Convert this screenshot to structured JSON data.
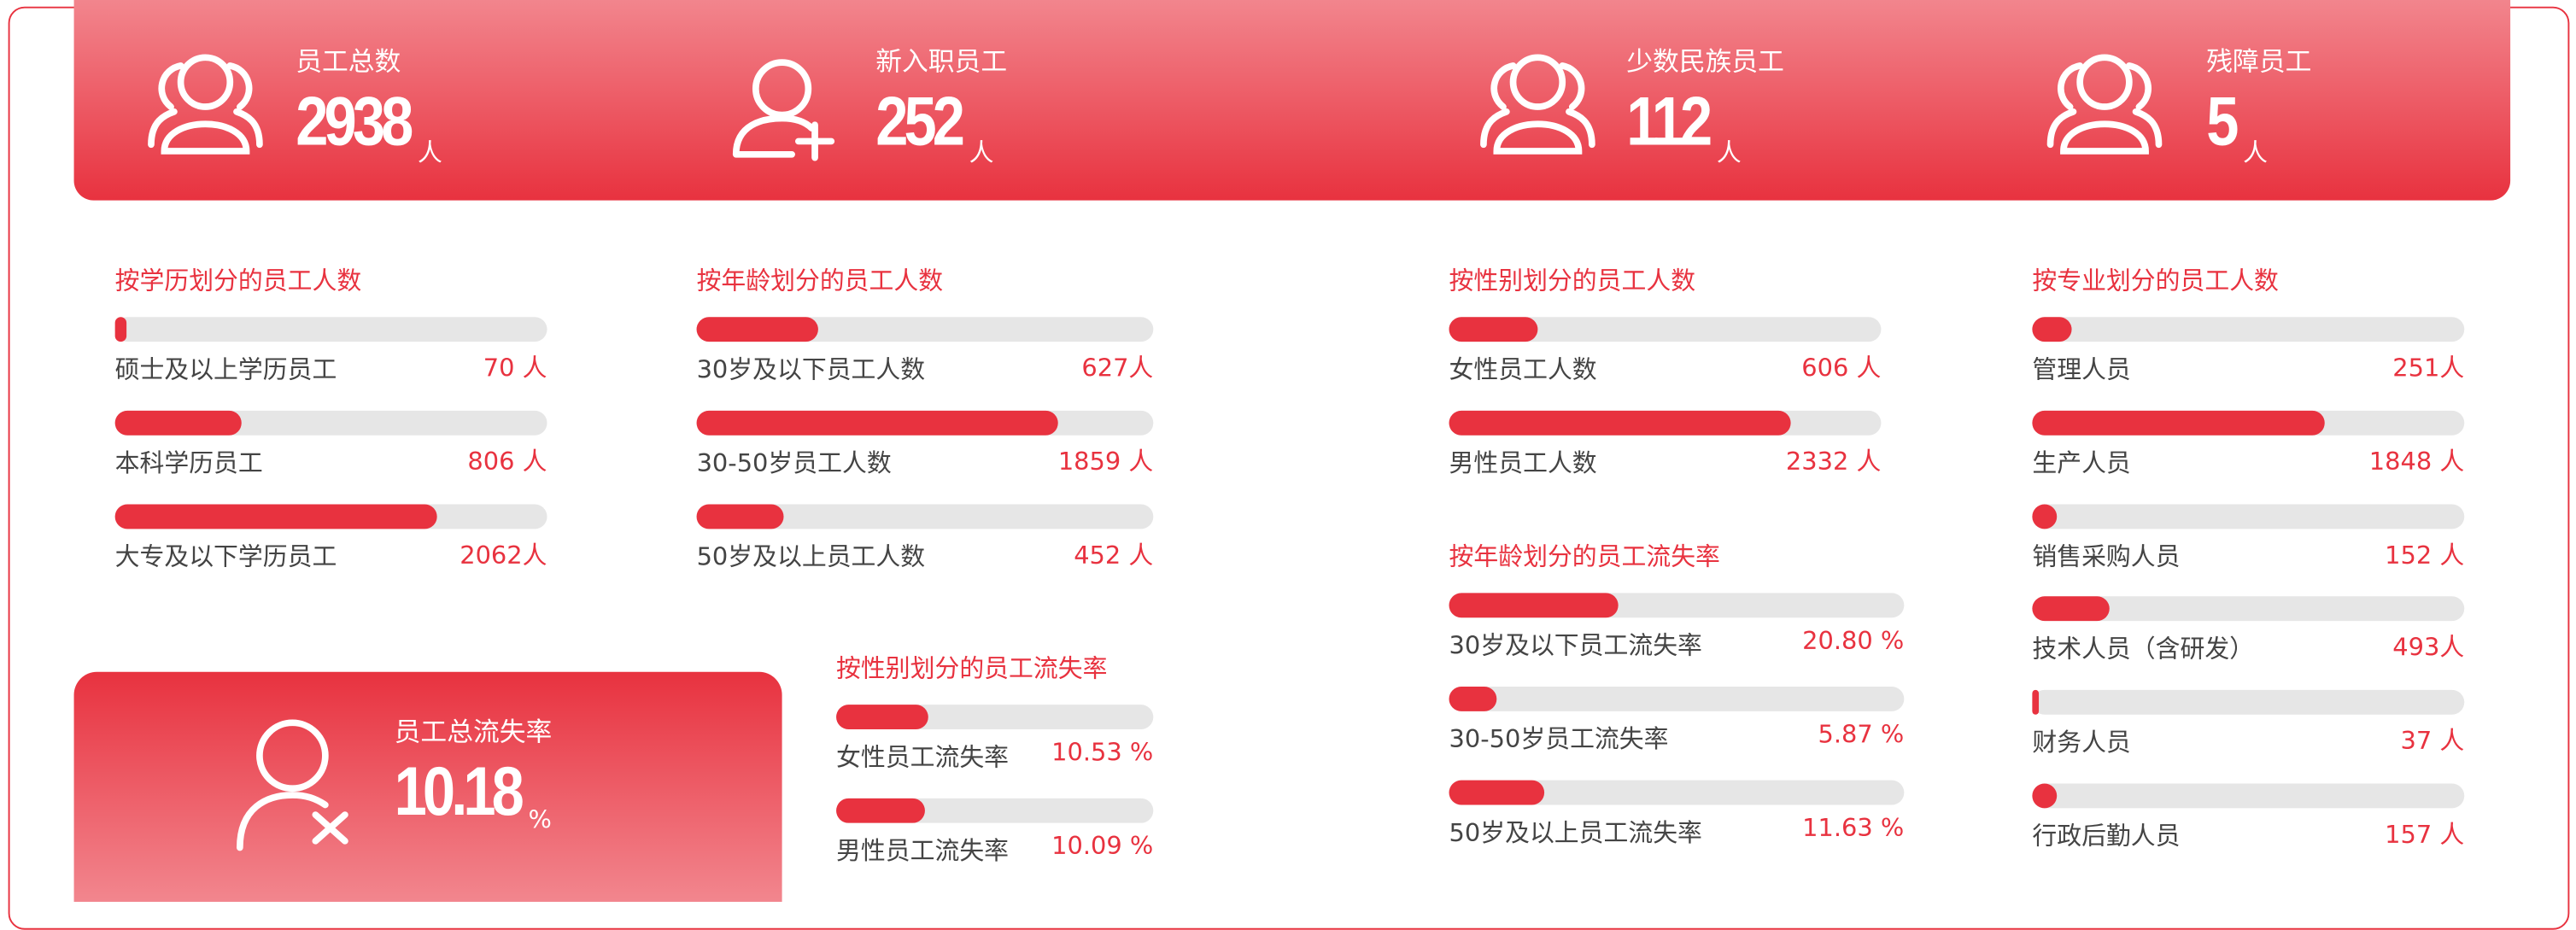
{
  "kpis": [
    {
      "title": "员工总数",
      "value": "2938",
      "unit": "人"
    },
    {
      "title": "新入职员工",
      "value": "252",
      "unit": "人"
    },
    {
      "title": "少数民族员工",
      "value": "112",
      "unit": "人"
    },
    {
      "title": "残障员工",
      "value": "5",
      "unit": "人"
    },
    {
      "title": "员工总流失率",
      "value": "10.18",
      "unit": "%"
    }
  ],
  "chart_data": [
    {
      "type": "bar",
      "title": "按学历划分的员工人数",
      "categories": [
        "硕士及以上学历员工",
        "本科学历员工",
        "大专及以下学历员工"
      ],
      "values": [
        70,
        806,
        2062
      ],
      "value_labels": [
        "70 人",
        "806 人",
        "2062人"
      ],
      "xlim": [
        0,
        2770
      ],
      "color": "#e8323f"
    },
    {
      "type": "bar",
      "title": "按年龄划分的员工人数",
      "categories": [
        "30岁及以下员工人数",
        "30-50岁员工人数",
        "50岁及以上员工人数"
      ],
      "values": [
        627,
        1859,
        452
      ],
      "value_labels": [
        "627人",
        "1859 人",
        "452 人"
      ],
      "xlim": [
        0,
        2350
      ],
      "color": "#e8323f"
    },
    {
      "type": "bar",
      "title": "按性别划分的员工人数",
      "categories": [
        "女性员工人数",
        "男性员工人数"
      ],
      "values": [
        606,
        2332
      ],
      "value_labels": [
        "606 人",
        "2332 人"
      ],
      "xlim": [
        0,
        2950
      ],
      "color": "#e8323f"
    },
    {
      "type": "bar",
      "title": "按专业划分的员工人数",
      "categories": [
        "管理人员",
        "生产人员",
        "销售采购人员",
        "技术人员（含研发）",
        "财务人员",
        "行政后勤人员"
      ],
      "values": [
        251,
        1848,
        152,
        493,
        37,
        157
      ],
      "value_labels": [
        "251人",
        "1848 人",
        "152 人",
        "493人",
        "37 人",
        "157 人"
      ],
      "xlim": [
        0,
        2730
      ],
      "color": "#e8323f"
    },
    {
      "type": "bar",
      "title": "按年龄划分的员工流失率",
      "categories": [
        "30岁及以下员工流失率",
        "30-50岁员工流失率",
        "50岁及以上员工流失率"
      ],
      "values": [
        20.8,
        5.87,
        11.63
      ],
      "value_labels": [
        "20.80 %",
        "5.87 %",
        "11.63 %"
      ],
      "xlim": [
        0,
        56
      ],
      "color": "#e8323f"
    },
    {
      "type": "bar",
      "title": "按性别划分的员工流失率",
      "categories": [
        "女性员工流失率",
        "男性员工流失率"
      ],
      "values": [
        10.53,
        10.09
      ],
      "value_labels": [
        "10.53 %",
        "10.09 %"
      ],
      "xlim": [
        0,
        36
      ],
      "color": "#e8323f"
    }
  ]
}
